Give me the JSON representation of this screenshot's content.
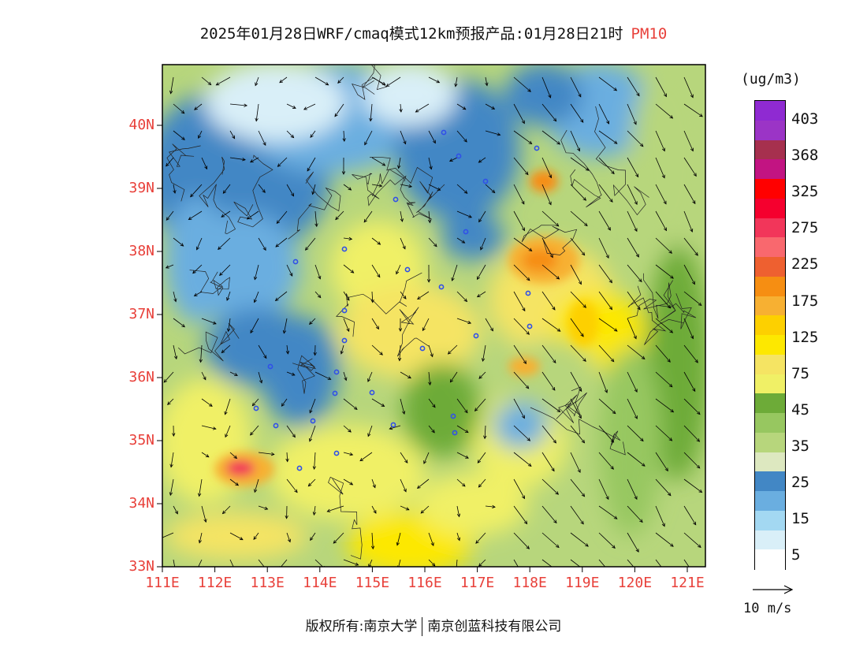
{
  "title": {
    "main": "2025年01月28日WRF/cmaq模式12km预报产品:01月28日21时",
    "pollutant": "PM10",
    "pollutant_color": "#e8403a"
  },
  "axes": {
    "lat_labels": [
      "33N",
      "34N",
      "35N",
      "36N",
      "37N",
      "38N",
      "39N",
      "40N"
    ],
    "lon_labels": [
      "111E",
      "112E",
      "113E",
      "114E",
      "115E",
      "116E",
      "117E",
      "118E",
      "119E",
      "120E",
      "121E"
    ],
    "label_color": "#e8403a"
  },
  "legend": {
    "unit": "(ug/m3)",
    "labels": [
      "403",
      "368",
      "325",
      "275",
      "225",
      "175",
      "125",
      "75",
      "45",
      "35",
      "25",
      "15",
      "5"
    ],
    "colors": [
      "#ffffff",
      "#d9eff8",
      "#a3d8f2",
      "#6aaee0",
      "#4287c5",
      "#dde8c0",
      "#b7d67c",
      "#97c760",
      "#6dab38",
      "#f0f066",
      "#f5e463",
      "#fde800",
      "#fdd000",
      "#f7b032",
      "#f68e12",
      "#ee6030",
      "#f9686e",
      "#f2365a",
      "#f5002e",
      "#ff0000",
      "#c21482",
      "#a6304e",
      "#8f2ad2",
      "#8f2ad2"
    ]
  },
  "wind_reference": {
    "label": "10 m/s"
  },
  "copyright": {
    "owner": "版权所有:南京大学",
    "company": "南京创蓝科技有限公司"
  },
  "map_features": {
    "city_marker_color": "#3050e8",
    "city_count": 28
  }
}
